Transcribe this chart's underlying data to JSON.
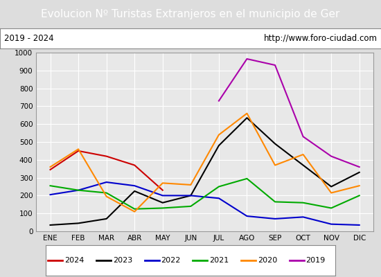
{
  "title": "Evolucion Nº Turistas Extranjeros en el municipio de Ger",
  "subtitle_left": "2019 - 2024",
  "subtitle_right": "http://www.foro-ciudad.com",
  "months": [
    "ENE",
    "FEB",
    "MAR",
    "ABR",
    "MAY",
    "JUN",
    "JUL",
    "AGO",
    "SEP",
    "OCT",
    "NOV",
    "DIC"
  ],
  "ylim": [
    0,
    1000
  ],
  "yticks": [
    0,
    100,
    200,
    300,
    400,
    500,
    600,
    700,
    800,
    900,
    1000
  ],
  "series": {
    "2024": {
      "color": "#cc0000",
      "data": [
        345,
        450,
        420,
        370,
        230,
        null,
        null,
        null,
        null,
        null,
        null,
        null
      ]
    },
    "2023": {
      "color": "#000000",
      "data": [
        35,
        45,
        70,
        225,
        160,
        200,
        480,
        635,
        490,
        370,
        250,
        330
      ]
    },
    "2022": {
      "color": "#0000cc",
      "data": [
        205,
        230,
        275,
        255,
        200,
        200,
        185,
        85,
        70,
        80,
        40,
        35
      ]
    },
    "2021": {
      "color": "#00aa00",
      "data": [
        255,
        230,
        215,
        125,
        130,
        140,
        250,
        295,
        165,
        160,
        130,
        200
      ]
    },
    "2020": {
      "color": "#ff8800",
      "data": [
        360,
        460,
        195,
        110,
        270,
        260,
        540,
        660,
        370,
        430,
        215,
        255
      ]
    },
    "2019": {
      "color": "#aa00aa",
      "data": [
        null,
        null,
        null,
        null,
        null,
        null,
        730,
        965,
        930,
        530,
        420,
        360
      ]
    }
  },
  "legend_order": [
    "2024",
    "2023",
    "2022",
    "2021",
    "2020",
    "2019"
  ],
  "title_bg_color": "#4472c4",
  "title_color": "white",
  "title_fontsize": 11,
  "subtitle_fontsize": 8.5,
  "plot_bg_color": "#e8e8e8",
  "grid_color": "white",
  "fig_bg_color": "#dddddd"
}
